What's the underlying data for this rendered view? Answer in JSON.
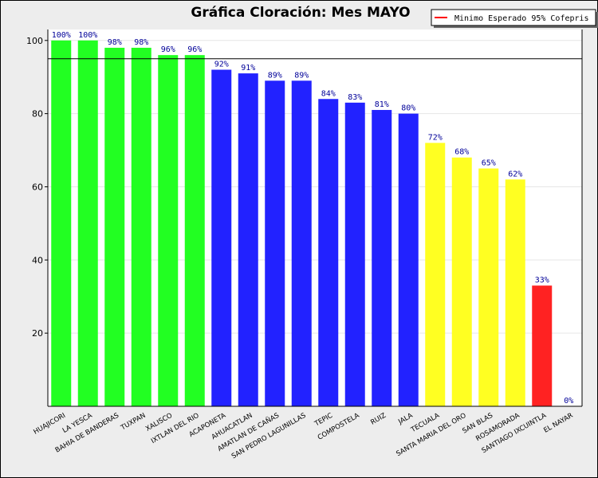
{
  "chart_data": {
    "type": "bar",
    "title": "Gráfica Cloración: Mes MAYO",
    "xlabel": "",
    "ylabel": "",
    "ylim": [
      0,
      103
    ],
    "yticks": [
      20,
      40,
      60,
      80,
      100
    ],
    "grid": true,
    "legend": {
      "placement": "top-right",
      "entries": [
        {
          "label": "Minimo Esperado 95% Cofepris",
          "color": "#ff0000"
        }
      ]
    },
    "reference_line": {
      "value": 95,
      "color": "#000000"
    },
    "categories": [
      "HUAJICORI",
      "LA YESCA",
      "BAHIA DE BANDERAS",
      "TUXPAN",
      "XALISCO",
      "IXTLAN DEL RIO",
      "ACAPONETA",
      "AHUACATLAN",
      "AMATLAN DE CAÑAS",
      "SAN PEDRO LAGUNILLAS",
      "TEPIC",
      "COMPOSTELA",
      "RUIZ",
      "JALA",
      "TECUALA",
      "SANTA MARIA DEL ORO",
      "SAN BLAS",
      "ROSAMORADA",
      "SANTIAGO IXCUINTLA",
      "EL NAYAR"
    ],
    "values": [
      100,
      100,
      98,
      98,
      96,
      96,
      92,
      91,
      89,
      89,
      84,
      83,
      81,
      80,
      72,
      68,
      65,
      62,
      33,
      0
    ],
    "data_labels": [
      "100%",
      "100%",
      "98%",
      "98%",
      "96%",
      "96%",
      "92%",
      "91%",
      "89%",
      "89%",
      "84%",
      "83%",
      "81%",
      "80%",
      "72%",
      "68%",
      "65%",
      "62%",
      "33%",
      "0%"
    ],
    "colors": [
      "#22ff22",
      "#22ff22",
      "#22ff22",
      "#22ff22",
      "#22ff22",
      "#22ff22",
      "#2222ff",
      "#2222ff",
      "#2222ff",
      "#2222ff",
      "#2222ff",
      "#2222ff",
      "#2222ff",
      "#2222ff",
      "#ffff22",
      "#ffff22",
      "#ffff22",
      "#ffff22",
      "#ff2222",
      "#ff2222"
    ]
  }
}
